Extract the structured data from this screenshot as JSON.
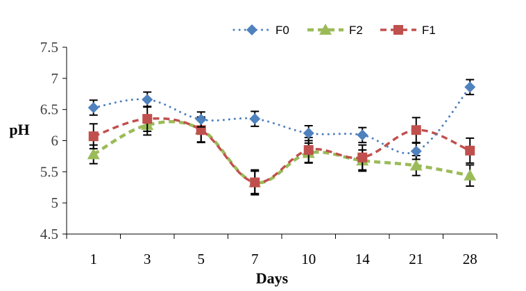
{
  "chart_data": {
    "type": "line",
    "title": "",
    "xlabel": "Days",
    "ylabel": "pH",
    "categories": [
      "1",
      "3",
      "5",
      "7",
      "10",
      "14",
      "21",
      "28"
    ],
    "ylim": [
      4.5,
      7.5
    ],
    "yticks": [
      "4.5",
      "5",
      "5.5",
      "6",
      "6.5",
      "7",
      "7.5"
    ],
    "grid": false,
    "legend_position": "top-right",
    "series": [
      {
        "name": "F0",
        "color": "#4F81BD",
        "marker": "diamond",
        "line_style": "dotted",
        "values": [
          6.53,
          6.66,
          6.34,
          6.35,
          6.12,
          6.09,
          5.83,
          6.86
        ],
        "errors": [
          0.12,
          0.12,
          0.12,
          0.12,
          0.12,
          0.12,
          0.13,
          0.12
        ]
      },
      {
        "name": "F2",
        "color": "#9BBB59",
        "marker": "triangle",
        "line_style": "dashed",
        "values": [
          5.78,
          6.25,
          6.18,
          5.33,
          5.8,
          5.68,
          5.6,
          5.44
        ],
        "errors": [
          0.15,
          0.16,
          0.2,
          0.18,
          0.16,
          0.17,
          0.16,
          0.17
        ]
      },
      {
        "name": "F1",
        "color": "#C0504D",
        "marker": "square",
        "line_style": "dashed",
        "values": [
          6.07,
          6.35,
          6.17,
          5.33,
          5.85,
          5.73,
          6.17,
          5.84
        ],
        "errors": [
          0.2,
          0.2,
          0.2,
          0.2,
          0.2,
          0.2,
          0.2,
          0.2
        ]
      }
    ]
  }
}
